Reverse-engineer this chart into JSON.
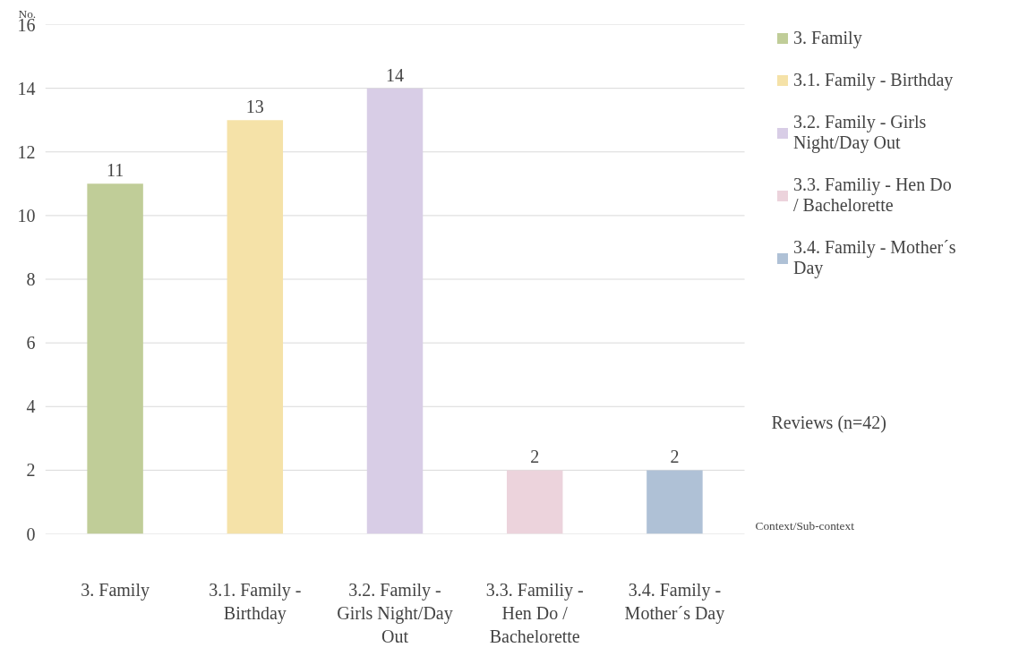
{
  "chart_data": {
    "type": "bar",
    "ylabel": "No.",
    "xlabel": "Context/Sub-context",
    "categories": [
      "3. Family",
      "3.1. Family - Birthday",
      "3.2. Family - Girls Night/Day Out",
      "3.3. Familiy - Hen Do / Bachelorette",
      "3.4. Family - Mother´s Day"
    ],
    "series": [
      {
        "name": "3. Family",
        "color": "#c0cd98",
        "values": [
          11,
          null,
          null,
          null,
          null
        ]
      },
      {
        "name": "3.1. Family - Birthday",
        "color": "#f5e2a8",
        "values": [
          null,
          13,
          null,
          null,
          null
        ]
      },
      {
        "name": "3.2. Family - Girls Night/Day Out",
        "color": "#d8cde6",
        "values": [
          null,
          null,
          14,
          null,
          null
        ]
      },
      {
        "name": "3.3. Familiy - Hen Do / Bachelorette",
        "color": "#ecd3dc",
        "values": [
          null,
          null,
          null,
          2,
          null
        ]
      },
      {
        "name": "3.4. Family - Mother´s Day",
        "color": "#afc1d6",
        "values": [
          null,
          null,
          null,
          null,
          2
        ]
      }
    ],
    "ylim": [
      0,
      16
    ],
    "yticks": [
      0,
      2,
      4,
      6,
      8,
      10,
      12,
      14,
      16
    ],
    "grid": "y",
    "data_labels": true,
    "legend": "right",
    "annotations": [
      "Reviews (n=42)"
    ]
  }
}
